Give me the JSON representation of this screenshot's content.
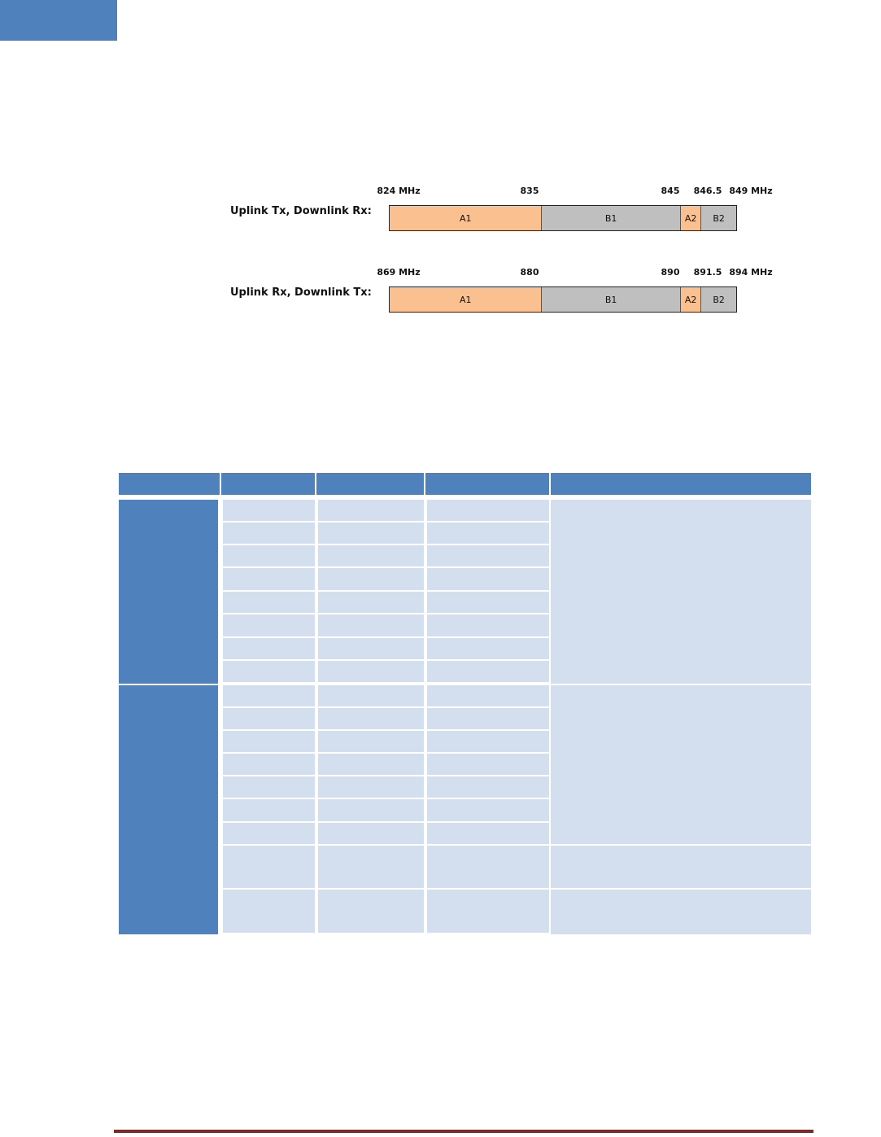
{
  "colors": {
    "header_blue": "#4F81BD",
    "cell_light": "#D3DFEE",
    "band_a": "#FAC090",
    "band_b": "#BFBFBF",
    "footer_rule": "#7F2A2A"
  },
  "diagram": {
    "uplink_tx": {
      "label": "Uplink Tx, Downlink Rx:",
      "freqs": [
        "824 MHz",
        "835",
        "845",
        "846.5",
        "849 MHz"
      ],
      "segments": [
        {
          "name": "A1",
          "start": 824,
          "end": 835,
          "color": "#FAC090"
        },
        {
          "name": "B1",
          "start": 835,
          "end": 845,
          "color": "#BFBFBF"
        },
        {
          "name": "A2",
          "start": 845,
          "end": 846.5,
          "color": "#FAC090"
        },
        {
          "name": "B2",
          "start": 846.5,
          "end": 849,
          "color": "#BFBFBF"
        }
      ]
    },
    "uplink_rx": {
      "label": "Uplink Rx, Downlink Tx:",
      "freqs": [
        "869 MHz",
        "880",
        "890",
        "891.5",
        "894 MHz"
      ],
      "segments": [
        {
          "name": "A1",
          "start": 869,
          "end": 880,
          "color": "#FAC090"
        },
        {
          "name": "B1",
          "start": 880,
          "end": 890,
          "color": "#BFBFBF"
        },
        {
          "name": "A2",
          "start": 890,
          "end": 891.5,
          "color": "#FAC090"
        },
        {
          "name": "B2",
          "start": 891.5,
          "end": 894,
          "color": "#BFBFBF"
        }
      ]
    }
  }
}
